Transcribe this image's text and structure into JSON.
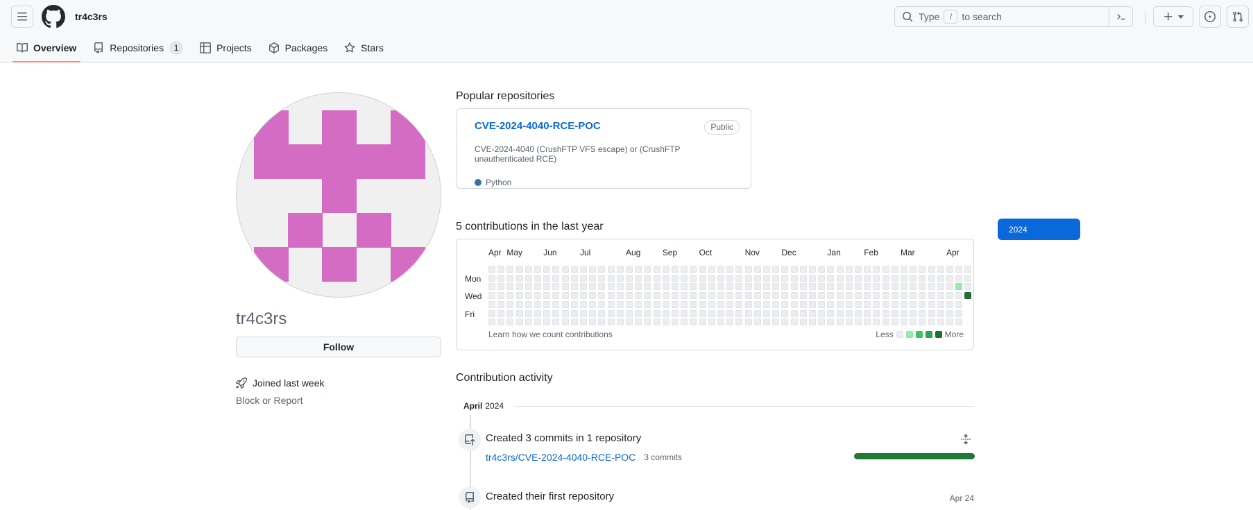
{
  "header": {
    "context_title": "tr4c3rs",
    "search": {
      "text_before": "Type",
      "slash_key": "/",
      "text_after": "to search"
    }
  },
  "tabs": [
    {
      "label": "Overview",
      "active": true
    },
    {
      "label": "Repositories",
      "count": "1"
    },
    {
      "label": "Projects"
    },
    {
      "label": "Packages"
    },
    {
      "label": "Stars"
    }
  ],
  "sidebar": {
    "username": "tr4c3rs",
    "follow_label": "Follow",
    "joined_text": "Joined last week",
    "block_report": "Block or Report",
    "identicon": {
      "fg": "#d46cc3",
      "bg": "#f0f0f0",
      "pattern": [
        "10101",
        "11111",
        "00100",
        "01010",
        "10101"
      ]
    }
  },
  "popular": {
    "title": "Popular repositories",
    "repo": {
      "name": "CVE-2024-4040-RCE-POC",
      "visibility": "Public",
      "description": "CVE-2024-4040 (CrushFTP VFS escape) or (CrushFTP unauthenticated RCE)",
      "language": "Python",
      "language_color": "#3572a5"
    }
  },
  "contributions": {
    "title": "5 contributions in the last year",
    "year_button": "2024",
    "year_button_color": "#0969da",
    "months": [
      {
        "label": "Apr",
        "col": 0
      },
      {
        "label": "May",
        "col": 2
      },
      {
        "label": "Jun",
        "col": 6
      },
      {
        "label": "Jul",
        "col": 10
      },
      {
        "label": "Aug",
        "col": 15
      },
      {
        "label": "Sep",
        "col": 19
      },
      {
        "label": "Oct",
        "col": 23
      },
      {
        "label": "Nov",
        "col": 28
      },
      {
        "label": "Dec",
        "col": 32
      },
      {
        "label": "Jan",
        "col": 37
      },
      {
        "label": "Feb",
        "col": 41
      },
      {
        "label": "Mar",
        "col": 45
      },
      {
        "label": "Apr",
        "col": 50
      }
    ],
    "day_labels": [
      {
        "label": "Mon",
        "row": 1
      },
      {
        "label": "Wed",
        "row": 3
      },
      {
        "label": "Fri",
        "row": 5
      }
    ],
    "grid": {
      "weeks": 53,
      "days": 7,
      "last_week_days": 4,
      "col_pitch": 13.2,
      "row_pitch": 12.7,
      "levels": [
        "#ebedf0",
        "#9be9a8",
        "#40c463",
        "#30a14e",
        "#216e39"
      ],
      "cells": [
        {
          "col": 51,
          "row": 2,
          "level": 1
        },
        {
          "col": 52,
          "row": 3,
          "level": 4
        }
      ]
    },
    "footer_link": "Learn how we count contributions",
    "legend_less": "Less",
    "legend_more": "More"
  },
  "activity": {
    "title": "Contribution activity",
    "period_month": "April",
    "period_year": "2024",
    "items": [
      {
        "title": "Created 3 commits in 1 repository",
        "repo_link": "tr4c3rs/CVE-2024-4040-RCE-POC",
        "commits_label": "3 commits",
        "bar_color": "#1f7a34"
      },
      {
        "title": "Created their first repository",
        "date": "Apr 24"
      }
    ]
  }
}
